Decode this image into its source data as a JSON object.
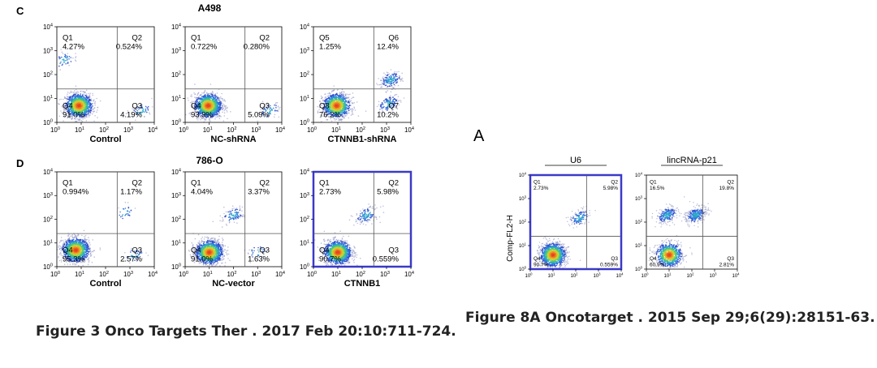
{
  "colors": {
    "highlight": "#3a3ac8",
    "gate": "#555555",
    "panel": "#000000"
  },
  "sections": [
    {
      "letter": "C",
      "title": "A498"
    },
    {
      "letter": "D",
      "title": "786-O"
    },
    {
      "letter": "A",
      "title": ""
    }
  ],
  "captions": {
    "left": "Figure 3 Onco Targets Ther . 2017 Feb 20:10:711-724.",
    "right": "Figure 8A Oncotarget . 2015 Sep 29;6(29):28151-63."
  },
  "chart_data": [
    {
      "type": "scatter",
      "panel": "C1",
      "xlabel": "Control",
      "ylabel": "",
      "xlim": [
        1,
        10000
      ],
      "ylim": [
        1,
        10000
      ],
      "log_scale": true,
      "gates": {
        "x": 300,
        "y": 25
      },
      "quadrants": [
        {
          "name": "Q1",
          "percent": "4.27%"
        },
        {
          "name": "Q2",
          "percent": "0.524%"
        },
        {
          "name": "Q3",
          "percent": "4.19%"
        },
        {
          "name": "Q4",
          "percent": "91.0%"
        }
      ],
      "populations": [
        {
          "x": 8,
          "y": 5,
          "weight": 0.91
        },
        {
          "x": 3000,
          "y": 3,
          "weight": 0.04
        },
        {
          "x": 2,
          "y": 400,
          "weight": 0.04
        }
      ]
    },
    {
      "type": "scatter",
      "panel": "C2",
      "xlabel": "NC-shRNA",
      "ylabel": "",
      "xlim": [
        1,
        10000
      ],
      "ylim": [
        1,
        10000
      ],
      "log_scale": true,
      "gates": {
        "x": 300,
        "y": 25
      },
      "quadrants": [
        {
          "name": "Q1",
          "percent": "0.722%"
        },
        {
          "name": "Q2",
          "percent": "0.280%"
        },
        {
          "name": "Q3",
          "percent": "5.09%"
        },
        {
          "name": "Q4",
          "percent": "93.9%"
        }
      ],
      "populations": [
        {
          "x": 9,
          "y": 5,
          "weight": 0.94
        },
        {
          "x": 3000,
          "y": 3,
          "weight": 0.05
        }
      ]
    },
    {
      "type": "scatter",
      "panel": "C3",
      "xlabel": "CTNNB1-shRNA",
      "ylabel": "",
      "xlim": [
        1,
        10000
      ],
      "ylim": [
        1,
        10000
      ],
      "log_scale": true,
      "gates": {
        "x": 300,
        "y": 25
      },
      "quadrants": [
        {
          "name": "Q5",
          "percent": "1.25%"
        },
        {
          "name": "Q6",
          "percent": "12.4%"
        },
        {
          "name": "Q7",
          "percent": "10.2%"
        },
        {
          "name": "Q8",
          "percent": "76.2%"
        }
      ],
      "populations": [
        {
          "x": 9,
          "y": 5,
          "weight": 0.76
        },
        {
          "x": 1500,
          "y": 60,
          "weight": 0.12
        },
        {
          "x": 1200,
          "y": 6,
          "weight": 0.1
        }
      ]
    },
    {
      "type": "scatter",
      "panel": "D1",
      "xlabel": "Control",
      "ylabel": "",
      "xlim": [
        1,
        10000
      ],
      "ylim": [
        1,
        10000
      ],
      "log_scale": true,
      "gates": {
        "x": 300,
        "y": 25
      },
      "quadrants": [
        {
          "name": "Q1",
          "percent": "0.994%"
        },
        {
          "name": "Q2",
          "percent": "1.17%"
        },
        {
          "name": "Q3",
          "percent": "2.57%"
        },
        {
          "name": "Q4",
          "percent": "95.3%"
        }
      ],
      "populations": [
        {
          "x": 6,
          "y": 5,
          "weight": 0.95
        },
        {
          "x": 1500,
          "y": 3,
          "weight": 0.03
        },
        {
          "x": 600,
          "y": 200,
          "weight": 0.02
        }
      ]
    },
    {
      "type": "scatter",
      "panel": "D2",
      "xlabel": "NC-vector",
      "ylabel": "",
      "xlim": [
        1,
        10000
      ],
      "ylim": [
        1,
        10000
      ],
      "log_scale": true,
      "gates": {
        "x": 300,
        "y": 25
      },
      "quadrants": [
        {
          "name": "Q1",
          "percent": "4.04%"
        },
        {
          "name": "Q2",
          "percent": "3.37%"
        },
        {
          "name": "Q3",
          "percent": "1.63%"
        },
        {
          "name": "Q4",
          "percent": "91.0%"
        }
      ],
      "populations": [
        {
          "x": 10,
          "y": 4,
          "weight": 0.91
        },
        {
          "x": 100,
          "y": 150,
          "weight": 0.07
        },
        {
          "x": 1000,
          "y": 4,
          "weight": 0.02
        }
      ]
    },
    {
      "type": "scatter",
      "panel": "D3",
      "xlabel": "CTNNB1",
      "ylabel": "",
      "highlight": true,
      "xlim": [
        1,
        10000
      ],
      "ylim": [
        1,
        10000
      ],
      "log_scale": true,
      "gates": {
        "x": 300,
        "y": 25
      },
      "quadrants": [
        {
          "name": "Q1",
          "percent": "2.73%"
        },
        {
          "name": "Q2",
          "percent": "5.98%"
        },
        {
          "name": "Q3",
          "percent": "0.559%"
        },
        {
          "name": "Q4",
          "percent": "90.7%"
        }
      ],
      "populations": [
        {
          "x": 10,
          "y": 4,
          "weight": 0.9
        },
        {
          "x": 150,
          "y": 150,
          "weight": 0.09
        }
      ]
    },
    {
      "type": "scatter",
      "panel": "A1",
      "xlabel": "",
      "ylabel": "Comp-FL2-H",
      "header": "U6",
      "highlight": true,
      "xlim": [
        1,
        10000
      ],
      "ylim": [
        1,
        10000
      ],
      "log_scale": true,
      "gates": {
        "x": 300,
        "y": 25
      },
      "quadrants": [
        {
          "name": "Q1",
          "percent": "2.73%"
        },
        {
          "name": "Q2",
          "percent": "5.98%"
        },
        {
          "name": "Q3",
          "percent": "0.559%"
        },
        {
          "name": "Q4",
          "percent": "90.7%"
        }
      ],
      "populations": [
        {
          "x": 10,
          "y": 4,
          "weight": 0.9
        },
        {
          "x": 150,
          "y": 150,
          "weight": 0.09
        }
      ]
    },
    {
      "type": "scatter",
      "panel": "A2",
      "xlabel": "",
      "ylabel": "",
      "header": "lincRNA-p21",
      "xlim": [
        1,
        10000
      ],
      "ylim": [
        1,
        10000
      ],
      "log_scale": true,
      "gates": {
        "x": 300,
        "y": 25
      },
      "quadrants": [
        {
          "name": "Q1",
          "percent": "16.5%"
        },
        {
          "name": "Q2",
          "percent": "19.8%"
        },
        {
          "name": "Q3",
          "percent": "2.81%"
        },
        {
          "name": "Q4",
          "percent": "60.9%"
        }
      ],
      "populations": [
        {
          "x": 10,
          "y": 4,
          "weight": 0.61
        },
        {
          "x": 150,
          "y": 200,
          "weight": 0.2
        },
        {
          "x": 8,
          "y": 200,
          "weight": 0.16
        }
      ]
    }
  ]
}
